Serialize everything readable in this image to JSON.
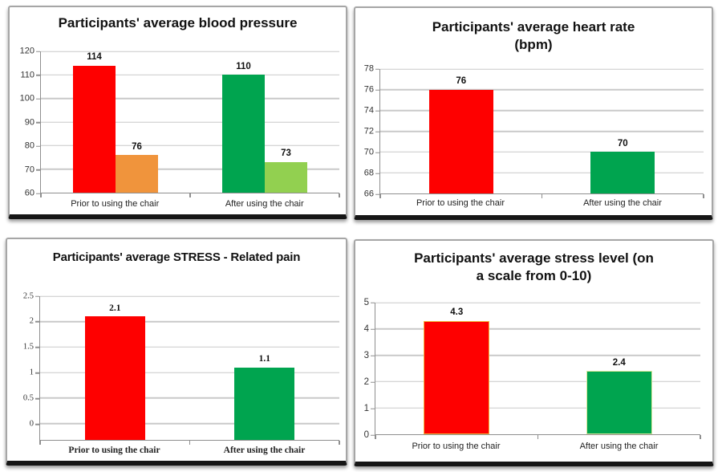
{
  "chart_data": [
    {
      "type": "bar",
      "id": "blood-pressure",
      "title": "Participants' average blood pressure",
      "categories": [
        "Prior to using the chair",
        "After using the chair"
      ],
      "bars": [
        {
          "category": 0,
          "name": "systolic-prior",
          "value": 114,
          "label": "114",
          "color": "#FE0000"
        },
        {
          "category": 0,
          "name": "diastolic-prior",
          "value": 76,
          "label": "76",
          "color": "#F0943C"
        },
        {
          "category": 1,
          "name": "systolic-after",
          "value": 110,
          "label": "110",
          "color": "#00A44F"
        },
        {
          "category": 1,
          "name": "diastolic-after",
          "value": 73,
          "label": "73",
          "color": "#92D050"
        }
      ],
      "ylim": [
        60,
        120
      ],
      "yticks": [
        60,
        70,
        80,
        90,
        100,
        110,
        120
      ],
      "grid": true,
      "legend": null
    },
    {
      "type": "bar",
      "id": "heart-rate",
      "title": "Participants' average heart rate (bpm)",
      "title_lines": [
        "Participants' average heart rate",
        "(bpm)"
      ],
      "categories": [
        "Prior to using the chair",
        "After using the chair"
      ],
      "bars": [
        {
          "category": 0,
          "name": "heart-rate-prior",
          "value": 76,
          "label": "76",
          "color": "#FE0000"
        },
        {
          "category": 1,
          "name": "heart-rate-after",
          "value": 70,
          "label": "70",
          "color": "#00A44F"
        }
      ],
      "ylim": [
        66,
        78
      ],
      "yticks": [
        66,
        68,
        70,
        72,
        74,
        76,
        78
      ],
      "grid": true,
      "legend": null
    },
    {
      "type": "bar",
      "id": "stress-related-pain",
      "title": "Participants' average STRESS - Related pain",
      "categories": [
        "Prior to using the chair",
        "After using the chair"
      ],
      "bars": [
        {
          "category": 0,
          "name": "pain-prior",
          "value": 2.1,
          "label": "2.1",
          "color": "#FE0000"
        },
        {
          "category": 1,
          "name": "pain-after",
          "value": 1.1,
          "label": "1.1",
          "color": "#00A44F"
        }
      ],
      "ylim": [
        0,
        2.5
      ],
      "plot_min": -0.32,
      "yticks": [
        0,
        0.5,
        1,
        1.5,
        2,
        2.5
      ],
      "grid": true,
      "legend": null
    },
    {
      "type": "bar",
      "id": "stress-level",
      "title": "Participants' average stress level (on a scale from 0-10)",
      "title_lines": [
        "Participants' average stress level (on",
        "a scale from 0-10)"
      ],
      "categories": [
        "Prior to using the chair",
        "After using the chair"
      ],
      "bars": [
        {
          "category": 0,
          "name": "stress-prior",
          "value": 4.3,
          "label": "4.3",
          "color": "#FE0000",
          "border_color": "#F0B43C"
        },
        {
          "category": 1,
          "name": "stress-after",
          "value": 2.4,
          "label": "2.4",
          "color": "#00A44F",
          "border_color": "#D9E69C"
        }
      ],
      "ylim": [
        0,
        5
      ],
      "yticks": [
        0,
        1,
        2,
        3,
        4,
        5
      ],
      "grid": true,
      "legend": null
    }
  ],
  "colors": {
    "red": "#FE0000",
    "orange": "#F0943C",
    "green": "#00A44F",
    "light_green": "#92D050",
    "gridline": "#C9C9C9",
    "axis": "#8F8F8F",
    "title_text": "#121212"
  }
}
